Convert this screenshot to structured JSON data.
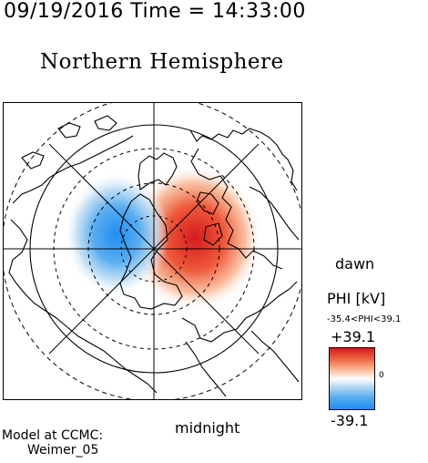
{
  "header": {
    "timestamp": "09/19/2016 Time = 14:33:00",
    "hemisphere": "Northern Hemisphere"
  },
  "map": {
    "dawn_label": "dawn",
    "midnight_label": "midnight",
    "positive_cell_color": "#d7191c",
    "negative_cell_color": "#1f8ef0"
  },
  "colorbar": {
    "title": "PHI [kV]",
    "range_text": "-35.4<PHI<39.1",
    "max_label": "+39.1",
    "zero_label": "0",
    "min_label": "-39.1"
  },
  "credit": {
    "line1": "Model at CCMC:",
    "line2": "Weimer_05"
  }
}
